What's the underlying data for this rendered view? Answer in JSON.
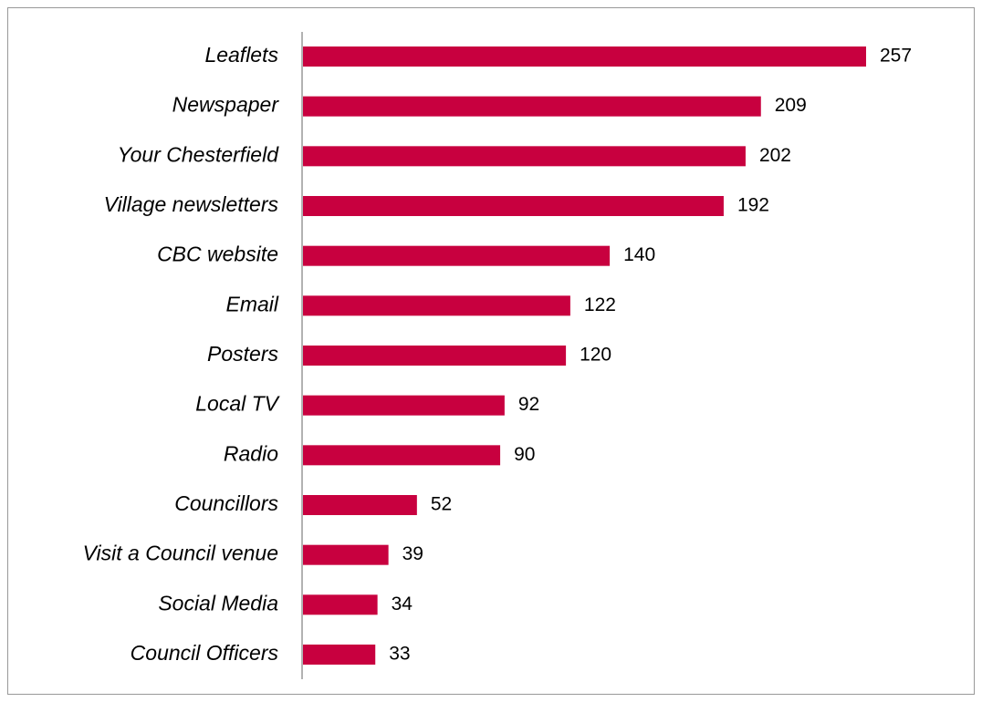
{
  "chart_data": {
    "type": "bar",
    "orientation": "horizontal",
    "categories": [
      "Leaflets",
      "Newspaper",
      "Your Chesterfield",
      "Village newsletters",
      "CBC website",
      "Email",
      "Posters",
      "Local TV",
      "Radio",
      "Councillors",
      "Visit a Council venue",
      "Social Media",
      "Council Officers"
    ],
    "values": [
      257,
      209,
      202,
      192,
      140,
      122,
      120,
      92,
      90,
      52,
      39,
      34,
      33
    ],
    "color": "#c8003f"
  }
}
